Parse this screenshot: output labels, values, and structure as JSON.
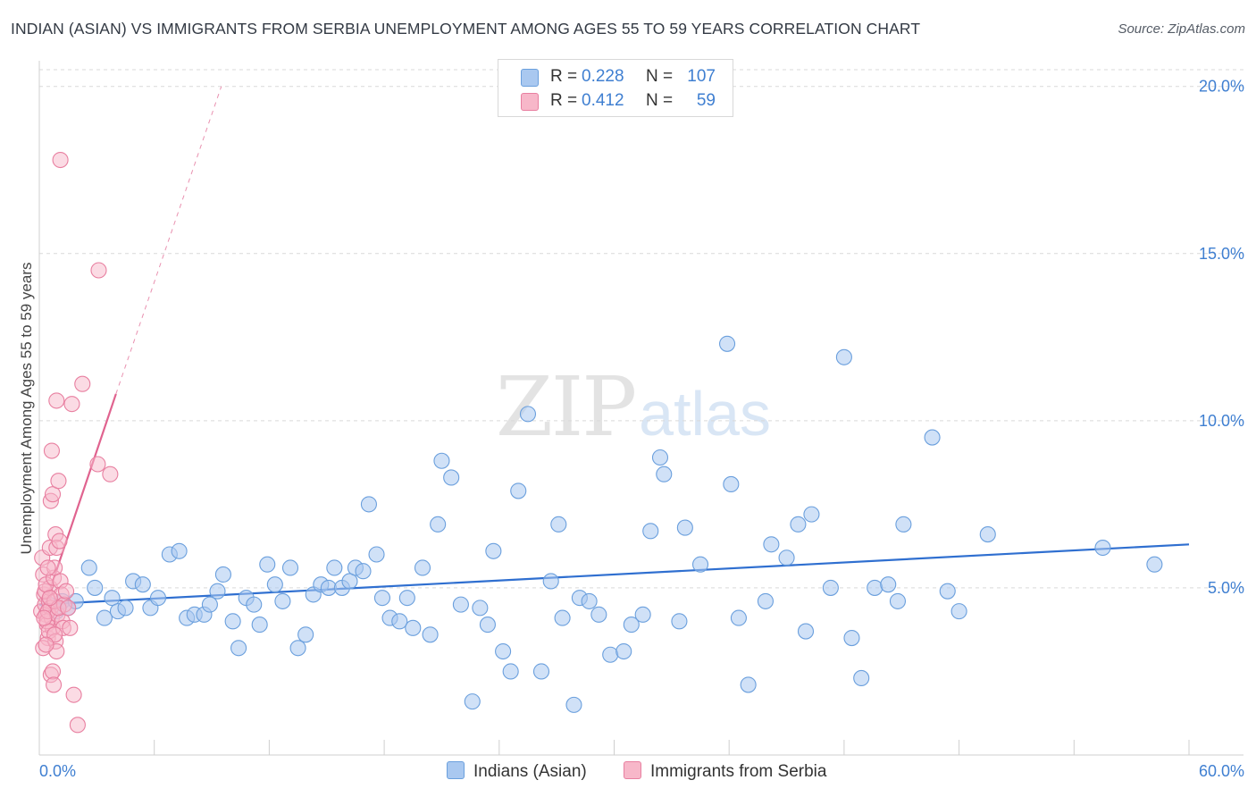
{
  "title": "INDIAN (ASIAN) VS IMMIGRANTS FROM SERBIA UNEMPLOYMENT AMONG AGES 55 TO 59 YEARS CORRELATION CHART",
  "source": "Source: ZipAtlas.com",
  "watermark": {
    "zip": "ZIP",
    "atlas": "atlas"
  },
  "legend": {
    "rows": [
      {
        "r_label": "R =",
        "r_value": "0.228",
        "n_label": "N =",
        "n_value": "107"
      },
      {
        "r_label": "R =",
        "r_value": "0.412",
        "n_label": "N =",
        "n_value": "59"
      }
    ]
  },
  "bottom_legend": {
    "series1": "Indians (Asian)",
    "series2": "Immigrants from Serbia"
  },
  "colors": {
    "series1_fill": "#a9c8f0",
    "series1_stroke": "#6a9fdd",
    "series1_line": "#2f6fd0",
    "series2_fill": "#f7b7c9",
    "series2_stroke": "#e87fa0",
    "series2_line": "#e0638f",
    "tick_text": "#3f7fd1",
    "grid": "#d9d9d9"
  },
  "chart_data": {
    "type": "scatter",
    "title": "INDIAN (ASIAN) VS IMMIGRANTS FROM SERBIA UNEMPLOYMENT AMONG AGES 55 TO 59 YEARS CORRELATION CHART",
    "xlabel": "",
    "ylabel": "Unemployment Among Ages 55 to 59 years",
    "xlim": [
      0,
      60
    ],
    "ylim": [
      0,
      20.5
    ],
    "x_tick_labels": [
      "0.0%",
      "60.0%"
    ],
    "y_ticks": [
      5,
      10,
      15,
      20
    ],
    "y_tick_labels": [
      "5.0%",
      "10.0%",
      "15.0%",
      "20.0%"
    ],
    "grid": true,
    "legend_position": "top-center",
    "series": [
      {
        "name": "Indians (Asian)",
        "trend": {
          "x": [
            0,
            60
          ],
          "y": [
            4.5,
            6.3
          ]
        },
        "points": [
          [
            0.5,
            4.5
          ],
          [
            0.9,
            4.3
          ],
          [
            1.2,
            4.6
          ],
          [
            1.5,
            4.4
          ],
          [
            1.9,
            4.6
          ],
          [
            2.6,
            5.6
          ],
          [
            2.9,
            5.0
          ],
          [
            3.4,
            4.1
          ],
          [
            3.8,
            4.7
          ],
          [
            4.1,
            4.3
          ],
          [
            4.5,
            4.4
          ],
          [
            4.9,
            5.2
          ],
          [
            5.4,
            5.1
          ],
          [
            5.8,
            4.4
          ],
          [
            6.2,
            4.7
          ],
          [
            6.8,
            6.0
          ],
          [
            7.3,
            6.1
          ],
          [
            7.7,
            4.1
          ],
          [
            8.1,
            4.2
          ],
          [
            8.6,
            4.2
          ],
          [
            8.9,
            4.5
          ],
          [
            9.3,
            4.9
          ],
          [
            9.6,
            5.4
          ],
          [
            10.1,
            4.0
          ],
          [
            10.4,
            3.2
          ],
          [
            10.8,
            4.7
          ],
          [
            11.2,
            4.5
          ],
          [
            11.5,
            3.9
          ],
          [
            11.9,
            5.7
          ],
          [
            12.3,
            5.1
          ],
          [
            12.7,
            4.6
          ],
          [
            13.1,
            5.6
          ],
          [
            13.5,
            3.2
          ],
          [
            13.9,
            3.6
          ],
          [
            14.3,
            4.8
          ],
          [
            14.7,
            5.1
          ],
          [
            15.1,
            5.0
          ],
          [
            15.4,
            5.6
          ],
          [
            15.8,
            5.0
          ],
          [
            16.2,
            5.2
          ],
          [
            16.5,
            5.6
          ],
          [
            16.9,
            5.5
          ],
          [
            17.2,
            7.5
          ],
          [
            17.6,
            6.0
          ],
          [
            17.9,
            4.7
          ],
          [
            18.3,
            4.1
          ],
          [
            18.8,
            4.0
          ],
          [
            19.2,
            4.7
          ],
          [
            19.5,
            3.8
          ],
          [
            20.0,
            5.6
          ],
          [
            20.4,
            3.6
          ],
          [
            20.8,
            6.9
          ],
          [
            21.0,
            8.8
          ],
          [
            21.5,
            8.3
          ],
          [
            22.0,
            4.5
          ],
          [
            22.6,
            1.6
          ],
          [
            23.0,
            4.4
          ],
          [
            23.4,
            3.9
          ],
          [
            23.7,
            6.1
          ],
          [
            24.2,
            3.1
          ],
          [
            24.6,
            2.5
          ],
          [
            25.0,
            7.9
          ],
          [
            25.5,
            10.2
          ],
          [
            26.2,
            2.5
          ],
          [
            26.7,
            5.2
          ],
          [
            27.1,
            6.9
          ],
          [
            27.3,
            4.1
          ],
          [
            27.9,
            1.5
          ],
          [
            28.2,
            4.7
          ],
          [
            28.7,
            4.6
          ],
          [
            29.2,
            4.2
          ],
          [
            29.8,
            3.0
          ],
          [
            30.5,
            3.1
          ],
          [
            30.9,
            3.9
          ],
          [
            31.5,
            4.2
          ],
          [
            31.9,
            6.7
          ],
          [
            32.4,
            8.9
          ],
          [
            32.6,
            8.4
          ],
          [
            33.4,
            4.0
          ],
          [
            33.7,
            6.8
          ],
          [
            34.5,
            5.7
          ],
          [
            35.9,
            12.3
          ],
          [
            36.1,
            8.1
          ],
          [
            36.5,
            4.1
          ],
          [
            37.0,
            2.1
          ],
          [
            37.9,
            4.6
          ],
          [
            38.2,
            6.3
          ],
          [
            39.0,
            5.9
          ],
          [
            39.6,
            6.9
          ],
          [
            40.0,
            3.7
          ],
          [
            40.3,
            7.2
          ],
          [
            41.3,
            5.0
          ],
          [
            42.0,
            11.9
          ],
          [
            42.4,
            3.5
          ],
          [
            42.9,
            2.3
          ],
          [
            43.6,
            5.0
          ],
          [
            44.3,
            5.1
          ],
          [
            44.8,
            4.6
          ],
          [
            45.1,
            6.9
          ],
          [
            46.6,
            9.5
          ],
          [
            47.4,
            4.9
          ],
          [
            48.0,
            4.3
          ],
          [
            49.5,
            6.6
          ],
          [
            55.5,
            6.2
          ],
          [
            58.2,
            5.7
          ]
        ]
      },
      {
        "name": "Immigrants from Serbia",
        "trend": {
          "x": [
            0,
            4.0
          ],
          "y": [
            4.0,
            10.8
          ]
        },
        "trend_extended": {
          "x": [
            4.0,
            9.5
          ],
          "y": [
            10.8,
            20.0
          ]
        },
        "points": [
          [
            0.1,
            4.3
          ],
          [
            0.15,
            5.9
          ],
          [
            0.2,
            5.4
          ],
          [
            0.25,
            4.8
          ],
          [
            0.3,
            4.5
          ],
          [
            0.35,
            4.2
          ],
          [
            0.4,
            3.9
          ],
          [
            0.45,
            3.5
          ],
          [
            0.2,
            3.2
          ],
          [
            0.5,
            4.6
          ],
          [
            0.55,
            5.0
          ],
          [
            0.6,
            4.4
          ],
          [
            0.65,
            4.1
          ],
          [
            0.7,
            3.8
          ],
          [
            0.3,
            4.9
          ],
          [
            0.35,
            5.1
          ],
          [
            0.4,
            4.0
          ],
          [
            0.45,
            4.3
          ],
          [
            0.5,
            3.7
          ],
          [
            0.55,
            6.2
          ],
          [
            0.6,
            7.6
          ],
          [
            0.65,
            9.1
          ],
          [
            0.7,
            7.8
          ],
          [
            0.75,
            5.3
          ],
          [
            0.8,
            5.6
          ],
          [
            0.85,
            6.6
          ],
          [
            0.9,
            6.2
          ],
          [
            0.95,
            4.2
          ],
          [
            0.8,
            4.6
          ],
          [
            0.85,
            3.4
          ],
          [
            0.9,
            10.6
          ],
          [
            1.0,
            8.2
          ],
          [
            1.05,
            6.4
          ],
          [
            1.1,
            5.2
          ],
          [
            1.15,
            4.8
          ],
          [
            1.2,
            4.0
          ],
          [
            1.25,
            3.8
          ],
          [
            1.3,
            4.5
          ],
          [
            1.0,
            4.4
          ],
          [
            0.6,
            2.4
          ],
          [
            0.7,
            2.5
          ],
          [
            0.75,
            2.1
          ],
          [
            0.8,
            3.6
          ],
          [
            0.9,
            3.1
          ],
          [
            1.4,
            4.9
          ],
          [
            1.5,
            4.4
          ],
          [
            1.6,
            3.8
          ],
          [
            1.7,
            10.5
          ],
          [
            1.1,
            17.8
          ],
          [
            1.8,
            1.8
          ],
          [
            2.0,
            0.9
          ],
          [
            2.25,
            11.1
          ],
          [
            3.05,
            8.7
          ],
          [
            3.1,
            14.5
          ],
          [
            3.7,
            8.4
          ],
          [
            0.25,
            4.1
          ],
          [
            0.35,
            3.3
          ],
          [
            0.45,
            5.6
          ],
          [
            0.55,
            4.7
          ]
        ]
      }
    ]
  }
}
